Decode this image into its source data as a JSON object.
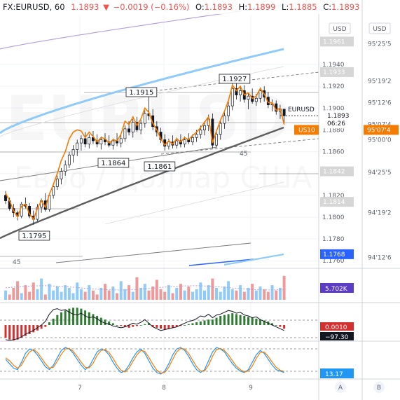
{
  "header": {
    "symbol": "FX:EURUSD, 60",
    "last": "1.1893",
    "change": "−0.0019 (−0.16%)",
    "o_label": "O:",
    "o": "1.1893",
    "h_label": "H:",
    "h": "1.1899",
    "l_label": "L:",
    "l": "1.1885",
    "c_label": "C:",
    "c": "1.1893"
  },
  "watermark": {
    "symbol": "EURUSD",
    "description": "Евро / Доллар США"
  },
  "scale_buttons": {
    "left": "USD",
    "right": "USD"
  },
  "axis_tags": {
    "last_symbol": "EURUSD",
    "last_price": "1.1893",
    "countdown": "06:26",
    "us10_label": "US10",
    "us10_value": "95'07'4",
    "levels": [
      {
        "label": "1.1961",
        "value": 1.1961
      },
      {
        "label": "1.1933",
        "value": 1.1933
      },
      {
        "label": "1.1842",
        "value": 1.1842
      },
      {
        "label": "1.1814",
        "value": 1.1814
      }
    ],
    "ma_tag": "1.1768",
    "volume_tag": "5.702K",
    "macd_tag": "0.0010",
    "macd_tag2": "−97.30",
    "stoch_tag": "13.17"
  },
  "annotations": {
    "peak1": "1.1915",
    "peak2": "1.1927",
    "low1": "1.1864",
    "low2": "1.1861",
    "low3": "1.1795",
    "period_a": "45",
    "period_b": "45"
  },
  "bottom": {
    "btn_a": "A",
    "btn_b": "B"
  },
  "colors": {
    "up": "#26a69a",
    "down": "#ef5350",
    "us10_line": "#f57c00",
    "ma_slow": "#5d5d5d",
    "ma_blue": "#90caf9",
    "ma_purple": "#9c6ade",
    "macd_up": "#2e7d32",
    "macd_down": "#d32f2f",
    "stoch_k": "#2196f3",
    "stoch_d": "#f57c00",
    "accent_blue": "#2962ff"
  },
  "chart_data": {
    "type": "candlestick",
    "symbol": "FX:EURUSD",
    "interval": "60",
    "x_ticks": [
      "7",
      "8",
      "9"
    ],
    "y_ticks": [
      "1.1760",
      "1.1780",
      "1.1800",
      "1.1820",
      "1.1840",
      "1.1860",
      "1.1880",
      "1.1900",
      "1.1920",
      "1.1940"
    ],
    "y_range": [
      1.1755,
      1.1985
    ],
    "right_axis_ticks": [
      "94'12'6",
      "94'19'2",
      "94'25'5",
      "95'00'0",
      "95'07'4",
      "95'12'6",
      "95'19'2",
      "95'25'5"
    ],
    "right_axis_values": [
      1.1763,
      1.1804,
      1.1841,
      1.1871,
      1.1885,
      1.1905,
      1.1925,
      1.1959
    ],
    "candles": [
      [
        1.182,
        1.1824,
        1.1812,
        1.1815
      ],
      [
        1.1815,
        1.1818,
        1.1806,
        1.1808
      ],
      [
        1.1808,
        1.1812,
        1.18,
        1.1804
      ],
      [
        1.1804,
        1.1806,
        1.1797,
        1.1801
      ],
      [
        1.1801,
        1.1814,
        1.1799,
        1.1812
      ],
      [
        1.1812,
        1.1818,
        1.1808,
        1.181
      ],
      [
        1.181,
        1.1813,
        1.1799,
        1.1801
      ],
      [
        1.1801,
        1.1806,
        1.1793,
        1.1798
      ],
      [
        1.1798,
        1.1812,
        1.1796,
        1.1809
      ],
      [
        1.1809,
        1.1817,
        1.1804,
        1.1815
      ],
      [
        1.1815,
        1.1822,
        1.1805,
        1.1807
      ],
      [
        1.1807,
        1.1822,
        1.1805,
        1.182
      ],
      [
        1.182,
        1.1831,
        1.1817,
        1.1828
      ],
      [
        1.1828,
        1.1838,
        1.1825,
        1.1835
      ],
      [
        1.1835,
        1.1845,
        1.183,
        1.1842
      ],
      [
        1.1842,
        1.1852,
        1.1838,
        1.1848
      ],
      [
        1.1848,
        1.186,
        1.1845,
        1.1857
      ],
      [
        1.1857,
        1.1866,
        1.185,
        1.1862
      ],
      [
        1.1862,
        1.1871,
        1.1856,
        1.1868
      ],
      [
        1.1868,
        1.1875,
        1.1861,
        1.1872
      ],
      [
        1.1872,
        1.1878,
        1.1864,
        1.1867
      ],
      [
        1.1867,
        1.1876,
        1.1863,
        1.1873
      ],
      [
        1.1873,
        1.1879,
        1.1867,
        1.187
      ],
      [
        1.187,
        1.1876,
        1.1864,
        1.1867
      ],
      [
        1.1867,
        1.1874,
        1.1862,
        1.1871
      ],
      [
        1.1871,
        1.1877,
        1.1866,
        1.1869
      ],
      [
        1.1869,
        1.1875,
        1.1864,
        1.1866
      ],
      [
        1.1866,
        1.1872,
        1.1862,
        1.187
      ],
      [
        1.187,
        1.1877,
        1.1865,
        1.1868
      ],
      [
        1.1868,
        1.1875,
        1.1864,
        1.1872
      ],
      [
        1.1872,
        1.1884,
        1.1869,
        1.1881
      ],
      [
        1.1881,
        1.1888,
        1.1875,
        1.1878
      ],
      [
        1.1878,
        1.189,
        1.1873,
        1.1887
      ],
      [
        1.1887,
        1.1892,
        1.1878,
        1.188
      ],
      [
        1.188,
        1.189,
        1.1876,
        1.1886
      ],
      [
        1.1886,
        1.1898,
        1.1882,
        1.1895
      ],
      [
        1.1895,
        1.1915,
        1.1889,
        1.1893
      ],
      [
        1.1893,
        1.1899,
        1.188,
        1.1883
      ],
      [
        1.1883,
        1.1888,
        1.1874,
        1.1878
      ],
      [
        1.1878,
        1.1882,
        1.1868,
        1.1871
      ],
      [
        1.1871,
        1.1876,
        1.1861,
        1.1865
      ],
      [
        1.1865,
        1.1872,
        1.1862,
        1.1869
      ],
      [
        1.1869,
        1.1875,
        1.1863,
        1.1866
      ],
      [
        1.1866,
        1.1873,
        1.1863,
        1.187
      ],
      [
        1.187,
        1.1876,
        1.1864,
        1.1867
      ],
      [
        1.1867,
        1.1874,
        1.1864,
        1.1871
      ],
      [
        1.1871,
        1.1877,
        1.1867,
        1.1869
      ],
      [
        1.1869,
        1.1876,
        1.1866,
        1.1873
      ],
      [
        1.1873,
        1.188,
        1.1869,
        1.1876
      ],
      [
        1.1876,
        1.1884,
        1.1872,
        1.188
      ],
      [
        1.188,
        1.1888,
        1.1875,
        1.1884
      ],
      [
        1.1884,
        1.1894,
        1.1879,
        1.189
      ],
      [
        1.189,
        1.1895,
        1.1863,
        1.1866
      ],
      [
        1.1866,
        1.1879,
        1.1864,
        1.1876
      ],
      [
        1.1876,
        1.1889,
        1.1871,
        1.1886
      ],
      [
        1.1886,
        1.1898,
        1.1881,
        1.1893
      ],
      [
        1.1893,
        1.1906,
        1.1888,
        1.1902
      ],
      [
        1.1902,
        1.1927,
        1.1898,
        1.1918
      ],
      [
        1.1918,
        1.1924,
        1.1908,
        1.1912
      ],
      [
        1.1912,
        1.192,
        1.1906,
        1.1916
      ],
      [
        1.1916,
        1.1921,
        1.1905,
        1.1908
      ],
      [
        1.1908,
        1.1914,
        1.1899,
        1.1911
      ],
      [
        1.1911,
        1.1918,
        1.1904,
        1.1906
      ],
      [
        1.1906,
        1.1913,
        1.1902,
        1.1909
      ],
      [
        1.1909,
        1.1919,
        1.1905,
        1.1916
      ],
      [
        1.1916,
        1.192,
        1.1906,
        1.191
      ],
      [
        1.191,
        1.1915,
        1.19,
        1.1903
      ],
      [
        1.1903,
        1.1908,
        1.1897,
        1.1904
      ],
      [
        1.1904,
        1.1907,
        1.1894,
        1.1897
      ],
      [
        1.1897,
        1.1903,
        1.189,
        1.1899
      ],
      [
        1.1899,
        1.1899,
        1.1885,
        1.1893
      ]
    ],
    "us10_line": [
      1.1822,
      1.1815,
      1.1806,
      1.18,
      1.181,
      1.1812,
      1.1803,
      1.1798,
      1.1808,
      1.1815,
      1.1809,
      1.1821,
      1.183,
      1.184,
      1.1852,
      1.186,
      1.1872,
      1.1878,
      1.188,
      1.1879,
      1.1873,
      1.1878,
      1.1874,
      1.1869,
      1.1873,
      1.1872,
      1.1868,
      1.1871,
      1.187,
      1.1876,
      1.1888,
      1.1885,
      1.1892,
      1.1884,
      1.189,
      1.19,
      1.1896,
      1.1886,
      1.188,
      1.1872,
      1.1866,
      1.187,
      1.1867,
      1.1872,
      1.1869,
      1.1873,
      1.1871,
      1.1875,
      1.1878,
      1.1882,
      1.1887,
      1.1892,
      1.1868,
      1.1879,
      1.1889,
      1.1897,
      1.1907,
      1.1921,
      1.1916,
      1.192,
      1.1912,
      1.1914,
      1.1909,
      1.1911,
      1.1918,
      1.1913,
      1.1905,
      1.1905,
      1.1898,
      1.19,
      1.1885
    ],
    "volume": [
      0.35,
      0.2,
      0.45,
      0.7,
      0.25,
      0.55,
      0.3,
      0.65,
      0.4,
      0.8,
      0.2,
      0.6,
      0.35,
      0.5,
      0.3,
      0.55,
      0.45,
      0.25,
      0.65,
      0.4,
      0.3,
      0.55,
      0.35,
      0.2,
      0.45,
      0.6,
      0.35,
      0.5,
      0.25,
      0.7,
      0.4,
      0.55,
      0.3,
      0.85,
      0.45,
      0.6,
      0.35,
      0.5,
      0.75,
      0.4,
      0.3,
      0.55,
      0.25,
      0.45,
      0.6,
      0.35,
      0.5,
      0.3,
      0.4,
      0.65,
      0.35,
      0.55,
      0.8,
      0.45,
      0.3,
      0.5,
      0.7,
      0.4,
      0.35,
      0.55,
      0.3,
      0.45,
      0.6,
      0.35,
      0.5,
      0.4,
      0.3,
      0.55,
      0.35,
      0.45,
      0.9
    ],
    "macd_hist": [
      -0.7,
      -0.8,
      -0.85,
      -0.8,
      -0.7,
      -0.6,
      -0.5,
      -0.4,
      -0.3,
      -0.2,
      -0.1,
      0.15,
      0.35,
      0.55,
      0.7,
      0.8,
      0.9,
      0.95,
      0.95,
      0.9,
      0.8,
      0.7,
      0.6,
      0.5,
      0.4,
      0.3,
      0.2,
      0.1,
      0.0,
      -0.05,
      -0.1,
      -0.15,
      -0.1,
      -0.05,
      0.0,
      0.05,
      0.1,
      -0.1,
      -0.15,
      -0.2,
      -0.25,
      -0.2,
      -0.15,
      -0.1,
      -0.05,
      0.0,
      0.05,
      0.1,
      0.15,
      0.2,
      0.25,
      0.3,
      0.3,
      0.4,
      0.5,
      0.55,
      0.6,
      0.65,
      0.6,
      0.55,
      0.5,
      0.45,
      0.4,
      0.35,
      0.3,
      0.25,
      0.2,
      0.1,
      0.0,
      -0.1,
      -0.2
    ],
    "macd_line": [
      -0.8,
      -0.85,
      -0.8,
      -0.75,
      -0.65,
      -0.5,
      -0.4,
      -0.3,
      -0.15,
      0.0,
      0.2,
      0.6,
      0.85,
      0.9,
      0.8,
      0.85,
      0.7,
      0.6,
      0.55,
      0.65,
      0.5,
      0.4,
      0.45,
      0.35,
      0.2,
      0.1,
      0.05,
      -0.05,
      -0.1,
      -0.15,
      -0.1,
      0.0,
      0.1,
      0.05,
      0.15,
      0.3,
      0.1,
      -0.1,
      -0.2,
      -0.3,
      -0.25,
      -0.2,
      -0.15,
      -0.1,
      0.0,
      0.1,
      0.2,
      0.25,
      0.35,
      0.5,
      0.45,
      0.6,
      0.4,
      0.55,
      0.6,
      0.7,
      0.8,
      0.75,
      0.65,
      0.7,
      0.55,
      0.5,
      0.4,
      0.45,
      0.3,
      0.2,
      0.1,
      0.0,
      -0.1,
      -0.2,
      -0.3
    ],
    "stoch_k": [
      0.55,
      0.4,
      0.25,
      0.2,
      0.45,
      0.75,
      0.9,
      0.85,
      0.7,
      0.5,
      0.3,
      0.2,
      0.35,
      0.6,
      0.85,
      0.95,
      0.9,
      0.75,
      0.55,
      0.35,
      0.2,
      0.3,
      0.55,
      0.8,
      0.9,
      0.85,
      0.7,
      0.45,
      0.25,
      0.1,
      0.15,
      0.35,
      0.6,
      0.8,
      0.9,
      0.75,
      0.5,
      0.25,
      0.1,
      0.05,
      0.15,
      0.4,
      0.7,
      0.9,
      0.95,
      0.85,
      0.65,
      0.4,
      0.2,
      0.1,
      0.2,
      0.5,
      0.8,
      0.95,
      0.9,
      0.8,
      0.6,
      0.4,
      0.25,
      0.15,
      0.1,
      0.2,
      0.45,
      0.7,
      0.85,
      0.75,
      0.55,
      0.35,
      0.2,
      0.15,
      0.1
    ],
    "stoch_d": [
      0.6,
      0.5,
      0.35,
      0.25,
      0.35,
      0.6,
      0.8,
      0.88,
      0.78,
      0.6,
      0.4,
      0.25,
      0.28,
      0.48,
      0.72,
      0.9,
      0.92,
      0.82,
      0.65,
      0.45,
      0.28,
      0.26,
      0.42,
      0.68,
      0.85,
      0.88,
      0.78,
      0.58,
      0.35,
      0.18,
      0.12,
      0.25,
      0.48,
      0.7,
      0.85,
      0.82,
      0.62,
      0.38,
      0.18,
      0.08,
      0.1,
      0.28,
      0.55,
      0.8,
      0.92,
      0.9,
      0.75,
      0.52,
      0.3,
      0.15,
      0.15,
      0.35,
      0.65,
      0.88,
      0.92,
      0.85,
      0.7,
      0.5,
      0.32,
      0.2,
      0.12,
      0.15,
      0.32,
      0.58,
      0.78,
      0.8,
      0.65,
      0.45,
      0.28,
      0.18,
      0.13
    ]
  }
}
